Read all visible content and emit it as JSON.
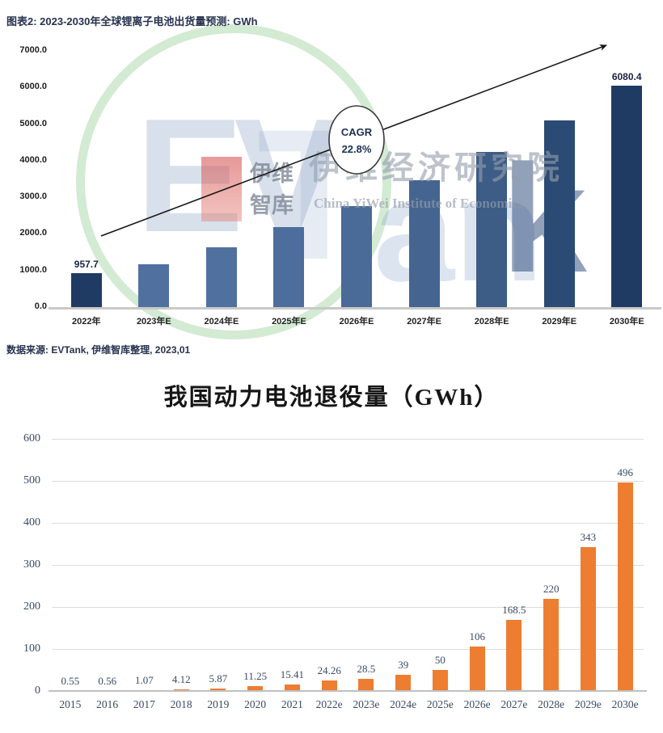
{
  "top_chart": {
    "title": "图表2: 2023-2030年全球锂离子电池出货量预测: GWh",
    "source": "数据来源: EVTank, 伊维智库整理, 2023,01",
    "cagr_line1": "CAGR",
    "cagr_line2": "22.8%"
  },
  "bottom_chart": {
    "title": "我国动力电池退役量（GWh）"
  },
  "watermark": {
    "letters_ev": "EV",
    "letter_t": "T",
    "letters_an": "an",
    "letter_k": "k",
    "side_line1": "伊维",
    "side_line2": "智库",
    "institute_cn": "伊维经济研究院",
    "institute_en": "China YiWei Institute of Economics"
  },
  "chart_data": [
    {
      "type": "bar",
      "title": "图表2: 2023-2030年全球锂离子电池出货量预测: GWh",
      "categories": [
        "2022年",
        "2023年E",
        "2024年E",
        "2025年E",
        "2026年E",
        "2027年E",
        "2028年E",
        "2029年E",
        "2030年E"
      ],
      "values": [
        957.7,
        1200,
        1650,
        2200,
        2780,
        3490,
        4270,
        5120,
        6080.4
      ],
      "bar_labels": [
        "957.7",
        null,
        null,
        null,
        null,
        null,
        null,
        null,
        "6080.4"
      ],
      "ylim": [
        0,
        7000
      ],
      "ytick_values": [
        7000,
        6000,
        5000,
        4000,
        3000,
        2000,
        1000,
        0
      ],
      "ytick_labels": [
        "7000.0",
        "6000.0",
        "5000.0",
        "4000.0",
        "3000.0",
        "2000.0",
        "1000.0",
        "0.0"
      ],
      "annotation": "CAGR 22.8%",
      "grid": false,
      "legend": "none",
      "bar_colors": [
        "#1f3b63",
        "#50719f",
        "#50719f",
        "#4d6e9c",
        "#4a6a97",
        "#456590",
        "#3d5c86",
        "#2b4a74",
        "#1f3b63"
      ]
    },
    {
      "type": "bar",
      "title": "我国动力电池退役量（GWh）",
      "categories": [
        "2015",
        "2016",
        "2017",
        "2018",
        "2019",
        "2020",
        "2021",
        "2022e",
        "2023e",
        "2024e",
        "2025e",
        "2026e",
        "2027e",
        "2028e",
        "2029e",
        "2030e"
      ],
      "values": [
        0.55,
        0.56,
        1.07,
        4.12,
        5.87,
        11.25,
        15.41,
        24.26,
        28.5,
        39,
        50,
        106,
        168.5,
        220,
        343,
        496
      ],
      "bar_labels": [
        "0.55",
        "0.56",
        "1.07",
        "4.12",
        "5.87",
        "11.25",
        "15.41",
        "24.26",
        "28.5",
        "39",
        "50",
        "106",
        "168.5",
        "220",
        "343",
        "496"
      ],
      "ylim": [
        0,
        600
      ],
      "ytick_values": [
        600,
        500,
        400,
        300,
        200,
        100,
        0
      ],
      "ytick_labels": [
        "600",
        "500",
        "400",
        "300",
        "200",
        "100",
        "0"
      ],
      "grid": true,
      "legend": "none",
      "bar_color": "#ED7D31"
    }
  ],
  "colors": {
    "top_bar_navy": "#1f3b63",
    "top_bar_slate": "#50719f",
    "bottom_bar_orange": "#ED7D31",
    "gridline": "#dcdcdc",
    "axis_line": "#c9c9c9",
    "title_navy": "#26324e",
    "tick_slate": "#3b4a66"
  }
}
